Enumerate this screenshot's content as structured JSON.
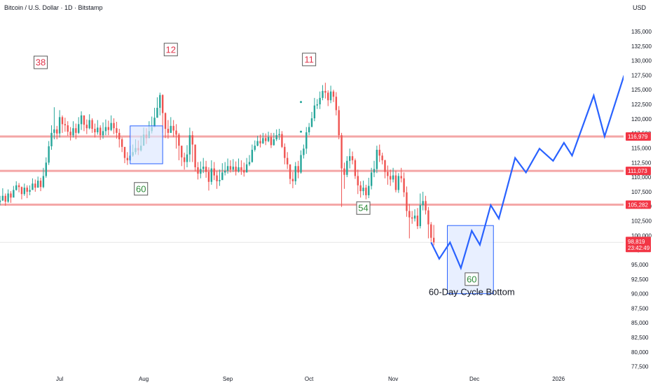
{
  "header": {
    "title": "Bitcoin / U.S. Dollar · 1D · Bitstamp",
    "currency": "USD"
  },
  "colors": {
    "up": "#26a69a",
    "down": "#ef5350",
    "level_line": "#f4a6a6",
    "projection": "#2962ff",
    "box_fill": "#dbe6ff",
    "box_stroke": "#2962ff",
    "red_label": "#e0354b",
    "green_label": "#2e8b3a",
    "badge_red": "#f23645",
    "axis_text": "#131722"
  },
  "chart_data": {
    "type": "candlestick",
    "y_axis": {
      "range": [
        76500,
        138000
      ],
      "ticks": [
        "135,000",
        "132,500",
        "130,000",
        "127,500",
        "125,000",
        "122,500",
        "120,000",
        "117,500",
        "115,000",
        "112,500",
        "110,000",
        "107,500",
        "105,000",
        "102,500",
        "100,000",
        "97,500",
        "95,000",
        "92,500",
        "90,000",
        "87,500",
        "85,000",
        "82,500",
        "80,000",
        "77,500"
      ],
      "tick_values": [
        135000,
        132500,
        130000,
        127500,
        125000,
        122500,
        120000,
        117500,
        115000,
        112500,
        110000,
        107500,
        105000,
        102500,
        100000,
        97500,
        95000,
        92500,
        90000,
        87500,
        85000,
        82500,
        80000,
        77500
      ]
    },
    "x_axis": {
      "start_date": "2025-06-09",
      "end_date": "2026-01-25",
      "ticks": [
        {
          "label": "Jul",
          "date": "2025-07-01"
        },
        {
          "label": "Aug",
          "date": "2025-08-01"
        },
        {
          "label": "Sep",
          "date": "2025-09-01"
        },
        {
          "label": "Oct",
          "date": "2025-10-01"
        },
        {
          "label": "Nov",
          "date": "2025-11-01"
        },
        {
          "label": "Dec",
          "date": "2025-12-01"
        },
        {
          "label": "2026",
          "date": "2026-01-01"
        }
      ]
    },
    "candles": {
      "first_date": "2025-06-09",
      "closes": [
        106000,
        106800,
        105800,
        107200,
        106500,
        107800,
        108600,
        108300,
        107100,
        108200,
        107500,
        107800,
        108900,
        108200,
        109400,
        108300,
        110200,
        112500,
        115300,
        117600,
        118200,
        117500,
        120300,
        119100,
        118900,
        117800,
        117200,
        118400,
        117600,
        119100,
        120600,
        119000,
        118400,
        119800,
        118300,
        117700,
        118500,
        117200,
        117900,
        118600,
        118100,
        119300,
        118400,
        117600,
        116500,
        115200,
        113300,
        112900,
        113700,
        114300,
        115000,
        114600,
        115400,
        117300,
        116700,
        117900,
        118600,
        120200,
        121900,
        124100,
        121000,
        118300,
        117600,
        118800,
        118000,
        117300,
        115400,
        113400,
        112600,
        113900,
        117200,
        115600,
        111700,
        110600,
        111400,
        111800,
        110900,
        109200,
        111500,
        110300,
        109300,
        109500,
        110800,
        111100,
        111900,
        111300,
        111800,
        111000,
        111700,
        111200,
        110800,
        112200,
        112600,
        114700,
        115400,
        116200,
        115800,
        116700,
        116200,
        116900,
        115500,
        116500,
        117200,
        117400,
        115200,
        113300,
        112200,
        109700,
        109300,
        111900,
        110800,
        113800,
        114900,
        117700,
        118600,
        120100,
        122300,
        122500,
        123600,
        124800,
        124500,
        123200,
        124700,
        123800,
        121500,
        117200,
        111500,
        110400,
        112800,
        113600,
        112900,
        110200,
        108600,
        107600,
        108200,
        106900,
        108500,
        110800,
        111400,
        114700,
        113700,
        112900,
        110900,
        110200,
        109600,
        110300,
        107800,
        110200,
        109800,
        107400,
        104200,
        103100,
        102900,
        103400,
        101600,
        105200,
        105900,
        104300,
        101900,
        99600,
        98819
      ],
      "highs": [
        106800,
        108100,
        107200,
        107900,
        107600,
        108500,
        109300,
        109000,
        108400,
        108900,
        108600,
        108600,
        109800,
        109600,
        110100,
        109900,
        111600,
        113400,
        116200,
        118900,
        122000,
        118800,
        121500,
        120600,
        120200,
        119600,
        118600,
        119600,
        119200,
        120300,
        121300,
        120600,
        119900,
        120800,
        120100,
        119200,
        119800,
        118900,
        119400,
        119900,
        119700,
        120600,
        120100,
        119500,
        118300,
        116800,
        114900,
        114300,
        115400,
        115600,
        116500,
        116300,
        117100,
        118500,
        118400,
        119600,
        120400,
        121900,
        123700,
        124500,
        124200,
        121100,
        119800,
        120300,
        119800,
        119100,
        117600,
        115400,
        114200,
        115500,
        118500,
        117900,
        114400,
        112600,
        112700,
        113300,
        112800,
        111700,
        112900,
        112600,
        111100,
        111300,
        112400,
        112600,
        113200,
        112900,
        113100,
        112700,
        113200,
        112900,
        112500,
        113300,
        113800,
        115600,
        116300,
        117100,
        117300,
        117600,
        117500,
        117800,
        117600,
        117600,
        118200,
        118300,
        117900,
        115800,
        114300,
        111700,
        110900,
        112600,
        112800,
        114600,
        115600,
        118600,
        119300,
        121200,
        123600,
        123400,
        124700,
        125800,
        126200,
        124900,
        125700,
        125000,
        124600,
        122200,
        117600,
        112500,
        113600,
        114900,
        114400,
        113200,
        111300,
        109300,
        109400,
        108700,
        109900,
        111600,
        112800,
        115400,
        115600,
        114200,
        113000,
        112000,
        111300,
        111600,
        111100,
        110700,
        111600,
        110800,
        108400,
        105400,
        104200,
        104500,
        104700,
        107200,
        107500,
        106800,
        104900,
        102300,
        101800
      ],
      "lows": [
        105200,
        105900,
        105100,
        105600,
        105600,
        107100,
        107700,
        107400,
        106200,
        106800,
        106400,
        106900,
        107900,
        107500,
        108200,
        107600,
        108100,
        109900,
        112100,
        114700,
        116500,
        116500,
        116800,
        117600,
        117800,
        117100,
        116300,
        116800,
        116500,
        117400,
        118100,
        117900,
        117400,
        118200,
        117600,
        116800,
        117300,
        116400,
        116600,
        117200,
        117200,
        117900,
        117400,
        116600,
        115100,
        114300,
        112400,
        112100,
        112800,
        113500,
        113900,
        113800,
        114400,
        115700,
        115700,
        116700,
        117500,
        118900,
        120200,
        120600,
        117600,
        116700,
        116600,
        117600,
        116900,
        114900,
        112900,
        111900,
        111300,
        111700,
        112600,
        112600,
        111000,
        109600,
        109800,
        110700,
        109900,
        107700,
        108700,
        109500,
        108000,
        108500,
        109700,
        110300,
        110600,
        110800,
        110900,
        110300,
        110800,
        110400,
        110100,
        110900,
        111900,
        112500,
        114400,
        115300,
        115100,
        115700,
        115500,
        116000,
        115000,
        115400,
        116200,
        116400,
        115000,
        112200,
        111400,
        108800,
        108100,
        108700,
        109800,
        110600,
        113200,
        114000,
        117200,
        118700,
        119600,
        121700,
        121700,
        123200,
        123500,
        122200,
        122700,
        122900,
        120600,
        116500,
        104900,
        108000,
        110000,
        111500,
        112200,
        109700,
        107100,
        106500,
        106900,
        106200,
        106400,
        107900,
        110000,
        110700,
        112600,
        112200,
        109800,
        108700,
        108500,
        109100,
        107400,
        107300,
        109100,
        106600,
        103200,
        99500,
        102000,
        102400,
        101100,
        101200,
        104300,
        103600,
        99500,
        98900,
        98300
      ]
    },
    "level_lines": [
      {
        "price": 116979,
        "label": "116,979"
      },
      {
        "price": 111073,
        "label": "111,073"
      },
      {
        "price": 105282,
        "label": "105,282"
      }
    ],
    "last_price": {
      "price": 98819,
      "label": "98,819",
      "countdown": "23:42:49"
    },
    "projection": {
      "points": [
        {
          "date": "2025-11-15",
          "price": 98800
        },
        {
          "date": "2025-11-18",
          "price": 96000
        },
        {
          "date": "2025-11-22",
          "price": 98800
        },
        {
          "date": "2025-11-26",
          "price": 94400
        },
        {
          "date": "2025-11-30",
          "price": 100800
        },
        {
          "date": "2025-12-03",
          "price": 98400
        },
        {
          "date": "2025-12-07",
          "price": 105200
        },
        {
          "date": "2025-12-10",
          "price": 102900
        },
        {
          "date": "2025-12-16",
          "price": 113300
        },
        {
          "date": "2025-12-20",
          "price": 110800
        },
        {
          "date": "2025-12-25",
          "price": 114900
        },
        {
          "date": "2025-12-30",
          "price": 112800
        },
        {
          "date": "2026-01-03",
          "price": 115900
        },
        {
          "date": "2026-01-06",
          "price": 113700
        },
        {
          "date": "2026-01-14",
          "price": 124000
        },
        {
          "date": "2026-01-18",
          "price": 117000
        },
        {
          "date": "2026-01-25",
          "price": 127200
        },
        {
          "date": "2026-01-29",
          "price": 124200
        }
      ]
    },
    "boxes": [
      {
        "date_start": "2025-07-27",
        "date_end": "2025-08-08",
        "price_low": 112300,
        "price_high": 118800
      },
      {
        "date_start": "2025-11-21",
        "date_end": "2025-12-08",
        "price_low": 90000,
        "price_high": 101700
      }
    ],
    "cycle_labels": [
      {
        "text": "38",
        "color": "red",
        "date": "2025-06-24",
        "price": 129700
      },
      {
        "text": "12",
        "color": "red",
        "date": "2025-08-11",
        "price": 131900
      },
      {
        "text": "11",
        "color": "red",
        "date": "2025-10-01",
        "price": 130200
      },
      {
        "text": "60",
        "color": "green",
        "date": "2025-07-31",
        "price": 108000
      },
      {
        "text": "54",
        "color": "green",
        "date": "2025-10-21",
        "price": 104700
      },
      {
        "text": "60",
        "color": "green",
        "date": "2025-11-30",
        "price": 92500
      }
    ],
    "annotations": [
      {
        "text": "60-Day Cycle Bottom",
        "date": "2025-11-30",
        "price": 89800
      }
    ],
    "markers": [
      {
        "date": "2025-09-28",
        "price": 122900
      },
      {
        "date": "2025-09-28",
        "price": 117800
      }
    ],
    "grid": false,
    "legend": "none"
  }
}
